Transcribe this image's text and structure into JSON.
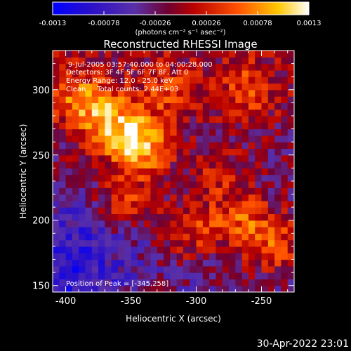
{
  "colorbar": {
    "tick_labels": [
      "-0.0013",
      "-0.00078",
      "-0.00026",
      "0.00026",
      "0.00078",
      "0.0013"
    ],
    "tick_values": [
      -0.0013,
      -0.00078,
      -0.00026,
      0.00026,
      0.00078,
      0.0013
    ],
    "unit_label": "(photons cm⁻² s⁻¹ asec⁻²)",
    "colors": [
      "#0000ff",
      "#3a1a9a",
      "#6a3aa8",
      "#8a1020",
      "#c81000",
      "#ff6a00",
      "#ffd000",
      "#ffffff"
    ]
  },
  "chart_data": {
    "type": "heatmap",
    "title": "Reconstructed RHESSI Image",
    "xlabel": "Heliocentric X (arcsec)",
    "ylabel": "Heliocentric Y (arcsec)",
    "xlim": [
      -410,
      -225
    ],
    "ylim": [
      145,
      330
    ],
    "x_ticks": [
      -400,
      -350,
      -300,
      -250
    ],
    "y_ticks": [
      150,
      200,
      250,
      300
    ],
    "x_tick_labels": [
      "-400",
      "-350",
      "-300",
      "-250"
    ],
    "y_tick_labels": [
      "150",
      "200",
      "250",
      "300"
    ],
    "value_range": [
      -0.0013,
      0.0013
    ],
    "peak_position": [
      -345,
      258
    ],
    "sources": [
      {
        "x": -345,
        "y": 258,
        "amp": 0.0013
      },
      {
        "x": -370,
        "y": 280,
        "amp": 0.0009
      },
      {
        "x": -395,
        "y": 295,
        "amp": 0.0006
      },
      {
        "x": -355,
        "y": 215,
        "amp": 0.0006
      },
      {
        "x": -305,
        "y": 190,
        "amp": 0.0006
      },
      {
        "x": -265,
        "y": 200,
        "amp": 0.0007
      },
      {
        "x": -240,
        "y": 180,
        "amp": 0.0007
      },
      {
        "x": -260,
        "y": 300,
        "amp": 0.0006
      },
      {
        "x": -320,
        "y": 300,
        "amp": 0.0005
      },
      {
        "x": -285,
        "y": 235,
        "amp": 0.0004
      }
    ],
    "annotations": [
      "9-Jul-2005 03:57:40.000 to 04:00:28.000",
      "Detectors: 3F 4F 5F 6F 7F 8F, Att 0",
      "Energy Range: 12.0 - 25.0 keV",
      "Clean     Total counts: 2.44E+03",
      "Position of Peak = [-345,258]"
    ]
  },
  "footer": {
    "timestamp": "30-Apr-2022 23:01"
  }
}
